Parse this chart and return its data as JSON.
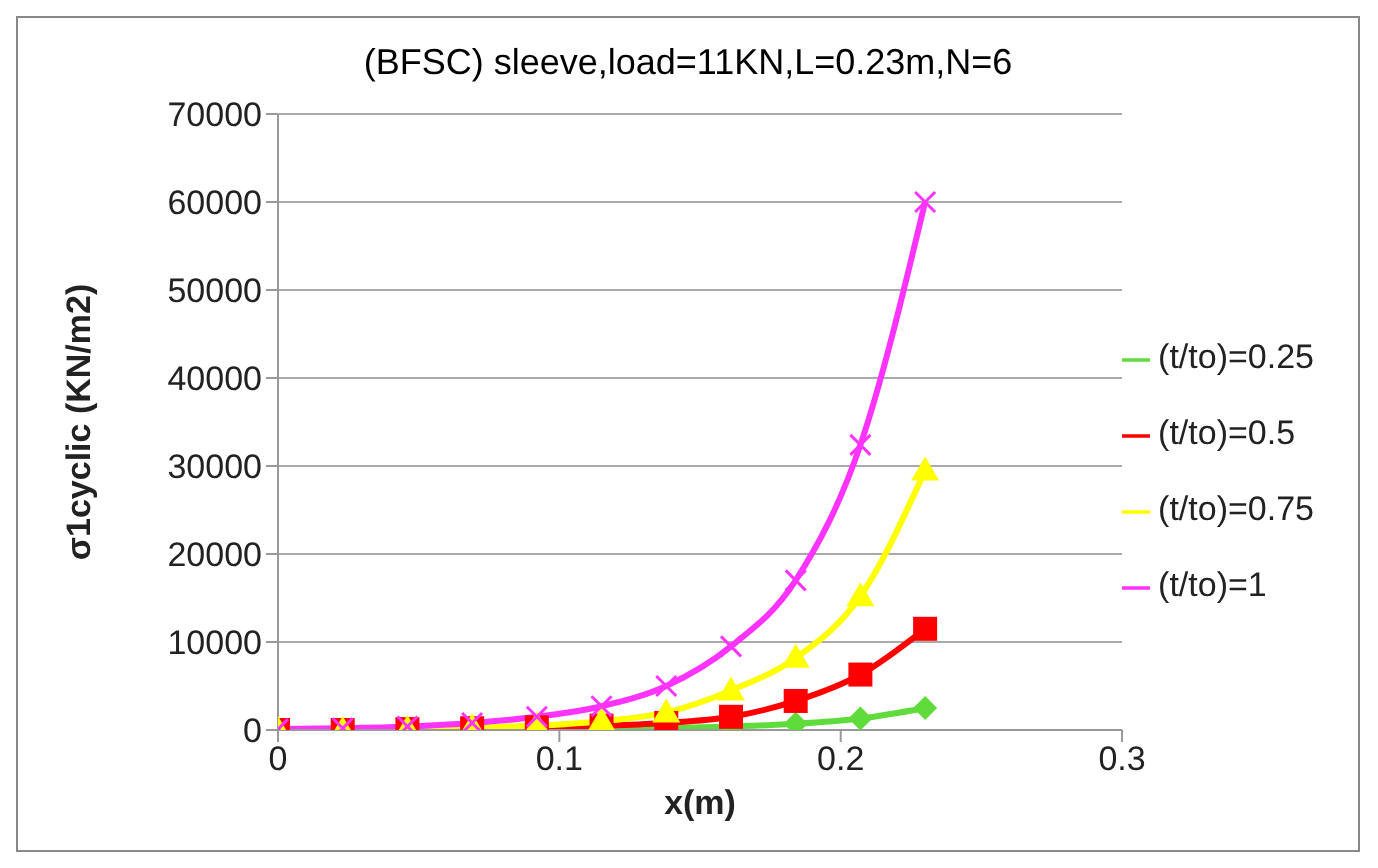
{
  "chart_data": {
    "type": "line",
    "title": "(BFSC) sleeve,load=11KN,L=0.23m,N=6",
    "xlabel": "x(m)",
    "ylabel": "σ1cyclic (KN/m2)",
    "x": [
      0,
      0.023,
      0.046,
      0.069,
      0.092,
      0.115,
      0.138,
      0.161,
      0.184,
      0.207,
      0.23
    ],
    "series": [
      {
        "name": "(t/to)=0.25",
        "color": "#5fdc3c",
        "marker": "diamond",
        "values": [
          null,
          null,
          null,
          null,
          0,
          100,
          200,
          400,
          700,
          1300,
          2500
        ]
      },
      {
        "name": "(t/to)=0.5",
        "color": "#ff0000",
        "marker": "square",
        "values": [
          0,
          0,
          100,
          200,
          300,
          500,
          800,
          1500,
          3300,
          6300,
          11500
        ]
      },
      {
        "name": "(t/to)=0.75",
        "color": "#ffff00",
        "marker": "triangle",
        "values": [
          0,
          0,
          100,
          300,
          500,
          1000,
          2000,
          4500,
          8200,
          15200,
          29500
        ]
      },
      {
        "name": "(t/to)=1",
        "color": "#ff33ff",
        "marker": "cross",
        "values": [
          100,
          200,
          400,
          800,
          1500,
          2700,
          5000,
          9500,
          17000,
          32400,
          60000
        ]
      }
    ],
    "xlim": [
      0,
      0.3
    ],
    "xticks": [
      0,
      0.1,
      0.2,
      0.3
    ],
    "ylim": [
      0,
      70000
    ],
    "yticks": [
      0,
      10000,
      20000,
      30000,
      40000,
      50000,
      60000,
      70000
    ],
    "grid": "y",
    "legend": "right"
  }
}
